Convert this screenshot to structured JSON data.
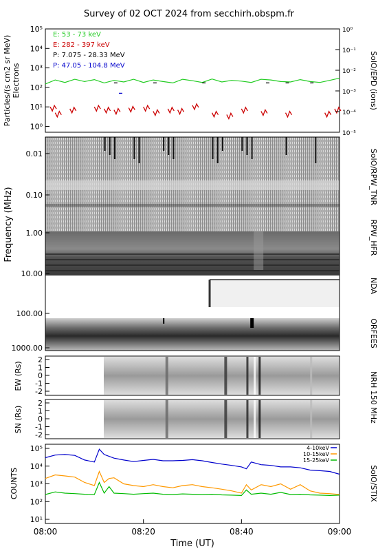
{
  "title": "Survey of 02 OCT 2024 from secchirh.obspm.fr",
  "time_axis": {
    "label": "Time (UT)",
    "ticks": [
      "08:00",
      "08:20",
      "08:40",
      "09:00"
    ],
    "range_minutes": [
      0,
      60
    ]
  },
  "colors": {
    "green": "#22cc22",
    "red": "#cc0000",
    "black": "#000000",
    "blue": "#0000cc",
    "orange": "#ff9900",
    "stix_green": "#00bb00"
  },
  "epd": {
    "ylabel": "Particles/(s cm2 sr MeV)",
    "ylabel2": "Electrons",
    "right_label": "SolO/EPD (ions)",
    "left_ticks": [
      "10⁰",
      "10¹",
      "10²",
      "10³",
      "10⁴",
      "10⁵"
    ],
    "right_ticks": [
      "10⁻⁵",
      "10⁻⁴",
      "10⁻³",
      "10⁻²",
      "10⁻¹",
      "10⁰"
    ],
    "legend": [
      {
        "text": "E: 53 - 73 keV",
        "color": "#22cc22"
      },
      {
        "text": "E: 282 - 397 keV",
        "color": "#cc0000"
      },
      {
        "text": "P: 7.075 - 28.33 MeV",
        "color": "#000000"
      },
      {
        "text": "P: 47.05 - 104.8 MeV",
        "color": "#0000cc"
      }
    ]
  },
  "radio": {
    "ylabel": "Frequency (MHz)",
    "ticks": [
      "0.01",
      "0.10",
      "1.00",
      "10.00",
      "100.00",
      "1000.00"
    ],
    "labels": [
      "SolO/RPW_TNR",
      "RPW_HFR",
      "NDA",
      "ORFEES"
    ]
  },
  "nrh": {
    "ew_label": "EW (Rs)",
    "sn_label": "SN (Rs)",
    "ticks": [
      "2",
      "1",
      "0",
      "-1",
      "-2"
    ],
    "right_label": "NRH 150 MHz"
  },
  "stix": {
    "ylabel": "COUNTS",
    "right_label": "SolO/STIX",
    "ticks": [
      "10¹",
      "10²",
      "10³",
      "10⁴",
      "10⁵"
    ],
    "legend": [
      {
        "text": "4-10keV",
        "color": "#0000cc"
      },
      {
        "text": "10-15keV",
        "color": "#ff9900"
      },
      {
        "text": "15-25keV",
        "color": "#00bb00"
      }
    ]
  },
  "chart_data": [
    {
      "type": "line",
      "name": "SolO/EPD",
      "x_unit": "minutes after 08:00",
      "yscale": "log",
      "ylim": [
        0.5,
        100000
      ],
      "series": [
        {
          "name": "E: 53 - 73 keV",
          "x": [
            0,
            2,
            4,
            6,
            8,
            10,
            12,
            14,
            16,
            18,
            20,
            22,
            24,
            26,
            28,
            30,
            32,
            34,
            36,
            38,
            40,
            42,
            44,
            46,
            48,
            50,
            52,
            54,
            56,
            58,
            60
          ],
          "y": [
            150,
            240,
            180,
            260,
            200,
            250,
            170,
            230,
            190,
            260,
            180,
            240,
            200,
            170,
            260,
            220,
            180,
            270,
            190,
            230,
            210,
            180,
            260,
            240,
            200,
            190,
            250,
            200,
            180,
            230,
            300
          ]
        },
        {
          "name": "E: 282 - 397 keV",
          "x": [
            1,
            2,
            5,
            10,
            12,
            14,
            17,
            20,
            22,
            25,
            27,
            30,
            34,
            37,
            40,
            44,
            49,
            57,
            59
          ],
          "y": [
            10,
            5,
            8,
            10,
            8,
            7,
            9,
            10,
            6,
            8,
            7,
            12,
            5,
            4,
            8,
            6,
            5,
            5,
            8
          ]
        },
        {
          "name": "P: 7.075 - 28.33 MeV",
          "x": [
            14,
            22,
            32,
            45,
            49,
            54
          ],
          "y": [
            170,
            170,
            170,
            170,
            170,
            170
          ]
        },
        {
          "name": "P: 47.05 - 104.8 MeV",
          "x": [
            15
          ],
          "y": [
            50
          ]
        }
      ]
    },
    {
      "type": "line",
      "name": "SolO/STIX",
      "x_unit": "minutes after 08:00",
      "yscale": "log",
      "ylim": [
        10,
        100000
      ],
      "series": [
        {
          "name": "4-10keV",
          "x": [
            0,
            2,
            4,
            6,
            8,
            10,
            11,
            12,
            14,
            16,
            18,
            20,
            22,
            24,
            26,
            28,
            30,
            32,
            34,
            36,
            38,
            40,
            41,
            42,
            44,
            46,
            48,
            50,
            52,
            54,
            56,
            58,
            60
          ],
          "y": [
            30000,
            42000,
            45000,
            40000,
            22000,
            17000,
            90000,
            45000,
            28000,
            22000,
            18000,
            21000,
            24000,
            20000,
            20000,
            21000,
            23000,
            20000,
            16000,
            13000,
            11000,
            9000,
            7000,
            17000,
            12000,
            11000,
            9000,
            9000,
            8000,
            6000,
            5500,
            5000,
            3500
          ]
        },
        {
          "name": "10-15keV",
          "x": [
            0,
            2,
            4,
            6,
            8,
            10,
            11,
            12,
            13,
            14,
            16,
            18,
            20,
            22,
            24,
            26,
            28,
            30,
            32,
            34,
            36,
            38,
            40,
            41,
            42,
            44,
            46,
            48,
            50,
            52,
            54,
            56,
            58,
            60
          ],
          "y": [
            2000,
            3200,
            2800,
            2400,
            1200,
            800,
            5000,
            1200,
            2000,
            2200,
            1000,
            800,
            700,
            900,
            700,
            600,
            800,
            900,
            700,
            600,
            500,
            400,
            300,
            900,
            450,
            900,
            700,
            1000,
            500,
            900,
            400,
            300,
            280,
            250
          ]
        },
        {
          "name": "15-25keV",
          "x": [
            0,
            2,
            4,
            6,
            8,
            10,
            11,
            12,
            13,
            14,
            16,
            18,
            20,
            22,
            24,
            26,
            28,
            30,
            32,
            34,
            36,
            38,
            40,
            41,
            42,
            44,
            46,
            48,
            50,
            52,
            54,
            56,
            58,
            60
          ],
          "y": [
            250,
            350,
            300,
            280,
            260,
            250,
            1200,
            300,
            700,
            300,
            280,
            260,
            280,
            300,
            260,
            250,
            270,
            260,
            250,
            260,
            240,
            230,
            220,
            450,
            260,
            300,
            260,
            330,
            250,
            260,
            240,
            230,
            220,
            230
          ]
        }
      ]
    }
  ]
}
